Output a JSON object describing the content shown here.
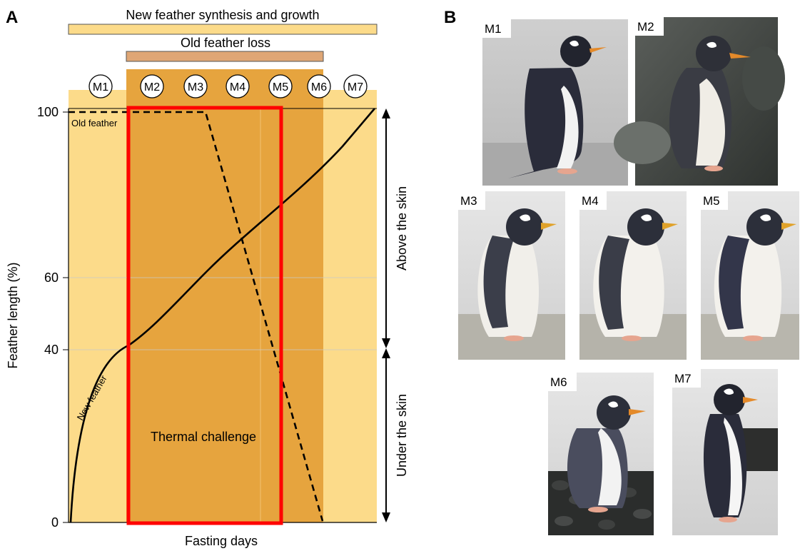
{
  "panel_a": {
    "letter": "A",
    "top_bar_label": "New feather synthesis and growth",
    "second_bar_label": "Old feather loss",
    "stages": [
      "M1",
      "M2",
      "M3",
      "M4",
      "M5",
      "M6",
      "M7"
    ],
    "y_axis_label": "Feather length (%)",
    "x_axis_label": "Fasting days",
    "y_ticks": [
      "100",
      "60",
      "40",
      "0"
    ],
    "old_feather_label": "Old feather",
    "new_feather_label": "New feather",
    "thermal_label": "Thermal challenge",
    "above_label": "Above the skin",
    "under_label": "Under the skin",
    "colors": {
      "light_band": "#FCDB8A",
      "dark_band": "#E6A43E",
      "loss_bar": "#DFA675",
      "highlight_box": "#FF0000"
    }
  },
  "panel_b": {
    "letter": "B",
    "photo_labels": [
      "M1",
      "M2",
      "M3",
      "M4",
      "M5",
      "M6",
      "M7"
    ]
  }
}
